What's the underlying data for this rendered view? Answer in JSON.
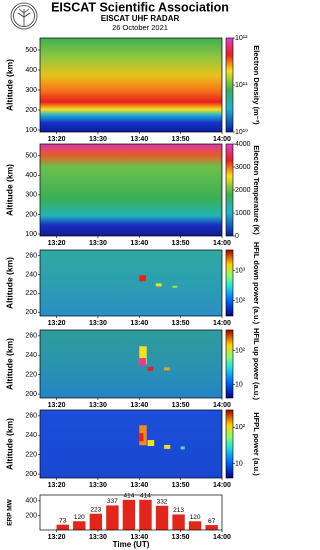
{
  "header": {
    "title": "EISCAT Scientific Association",
    "subtitle": "EISCAT UHF RADAR",
    "date": "26 October 2021"
  },
  "chart_data": [
    {
      "type": "heatmap",
      "ylabel": "Altitude (km)",
      "ylim": [
        90,
        560
      ],
      "yticks": [
        100,
        200,
        300,
        400,
        500
      ],
      "xlim": [
        "13:16",
        "14:00"
      ],
      "xticks": [
        "13:20",
        "13:30",
        "13:40",
        "13:50",
        "14:00"
      ],
      "colorbar_label": "Electron Density (m⁻³)",
      "colorbar_log": true,
      "clim": [
        10000000000.0,
        1000000000000.0
      ],
      "cticks": [
        {
          "value": 10000000000.0,
          "label": "10¹⁰"
        },
        {
          "value": 100000000000.0,
          "label": "10¹¹"
        },
        {
          "value": 1000000000000.0,
          "label": "10¹²"
        }
      ]
    },
    {
      "type": "heatmap",
      "ylabel": "Altitude (km)",
      "ylim": [
        90,
        560
      ],
      "yticks": [
        100,
        200,
        300,
        400,
        500
      ],
      "xlim": [
        "13:16",
        "14:00"
      ],
      "xticks": [
        "13:20",
        "13:30",
        "13:40",
        "13:50",
        "14:00"
      ],
      "colorbar_label": "Electron Temperature (K)",
      "colorbar_log": false,
      "clim": [
        0,
        4000
      ],
      "cticks": [
        0,
        1000,
        2000,
        3000,
        4000
      ]
    },
    {
      "type": "heatmap",
      "ylabel": "Altitude (km)",
      "ylim": [
        196,
        266
      ],
      "yticks": [
        200,
        220,
        240,
        260
      ],
      "xlim": [
        "13:16",
        "14:00"
      ],
      "xticks": [
        "13:20",
        "13:30",
        "13:40",
        "13:50",
        "14:00"
      ],
      "colorbar_label": "HFIL down power (a.u.)",
      "colorbar_log": true,
      "clim": [
        30,
        5000
      ],
      "cticks": [
        {
          "value": 100,
          "label": "10²"
        },
        {
          "value": 1000,
          "label": "10³"
        }
      ]
    },
    {
      "type": "heatmap",
      "ylabel": "Altitude (km)",
      "ylim": [
        196,
        266
      ],
      "yticks": [
        200,
        220,
        240,
        260
      ],
      "xlim": [
        "13:16",
        "14:00"
      ],
      "xticks": [
        "13:20",
        "13:30",
        "13:40",
        "13:50",
        "14:00"
      ],
      "colorbar_label": "HFIL up power (a.u.)",
      "colorbar_log": true,
      "clim": [
        4,
        400
      ],
      "cticks": [
        10,
        {
          "value": 100,
          "label": "10²"
        }
      ]
    },
    {
      "type": "heatmap",
      "ylabel": "Altitude (km)",
      "ylim": [
        196,
        266
      ],
      "yticks": [
        200,
        220,
        240,
        260
      ],
      "xlim": [
        "13:16",
        "14:00"
      ],
      "xticks": [
        "13:20",
        "13:30",
        "13:40",
        "13:50",
        "14:00"
      ],
      "colorbar_label": "HFPL power (a.u.)",
      "colorbar_log": true,
      "clim": [
        4,
        300
      ],
      "cticks": [
        10,
        {
          "value": 100,
          "label": "10²"
        }
      ]
    },
    {
      "type": "bar",
      "ylabel": "ERP MW",
      "xlabel": "Time (UT)",
      "color": "#e3261c",
      "x": [
        "13:20",
        "13:24",
        "13:28",
        "13:32",
        "13:36",
        "13:40",
        "13:44",
        "13:48",
        "13:52",
        "13:56"
      ],
      "values": [
        73,
        120,
        223,
        337,
        414,
        414,
        332,
        213,
        120,
        67
      ],
      "ylim": [
        0,
        480
      ],
      "yticks": [
        200,
        400
      ],
      "xlim": [
        "13:16",
        "14:00"
      ],
      "xticks": [
        "13:20",
        "13:30",
        "13:40",
        "13:50",
        "14:00"
      ]
    }
  ]
}
